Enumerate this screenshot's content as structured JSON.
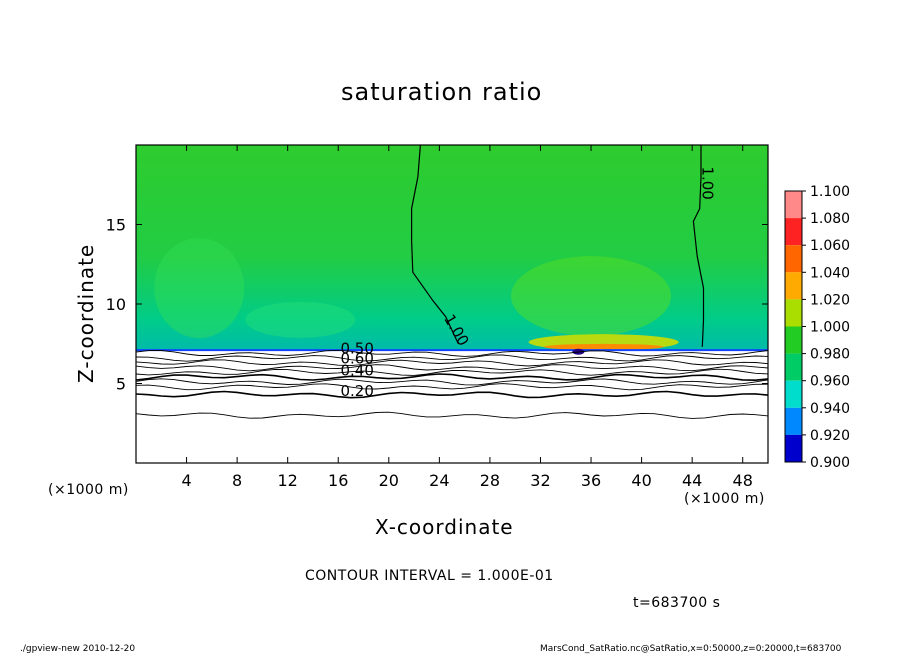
{
  "chart_data": {
    "type": "heatmap",
    "title": "saturation ratio",
    "xlabel": "X-coordinate",
    "ylabel": "Z-coordinate",
    "x_unit": "(×1000 m)",
    "y_unit": "(×1000 m)",
    "xlim": [
      0,
      50
    ],
    "ylim": [
      0,
      20
    ],
    "x_ticks": [
      4,
      8,
      12,
      16,
      20,
      24,
      28,
      32,
      36,
      40,
      44,
      48
    ],
    "y_ticks": [
      5,
      10,
      15
    ],
    "colorbar": {
      "levels": [
        "1.100",
        "1.080",
        "1.060",
        "1.040",
        "1.020",
        "1.000",
        "0.980",
        "0.960",
        "0.940",
        "0.920",
        "0.900"
      ],
      "colors": [
        "#ff8888",
        "#ff2222",
        "#ff6600",
        "#ffaa00",
        "#aadd00",
        "#22cc22",
        "#00cc66",
        "#00ddcc",
        "#0088ff",
        "#0000cc",
        "#660099"
      ]
    },
    "contour_labels": [
      "1.00",
      "1.00",
      "0.50",
      "0.60",
      "0.40",
      "0.20"
    ],
    "contour_interval_text": "CONTOUR INTERVAL = 1.000E-01",
    "time_text": "t=683700 s"
  },
  "footer": {
    "left": "./gpview-new  2010-12-20",
    "right": "MarsCond_SatRatio.nc@SatRatio,x=0:50000,z=0:20000,t=683700"
  }
}
